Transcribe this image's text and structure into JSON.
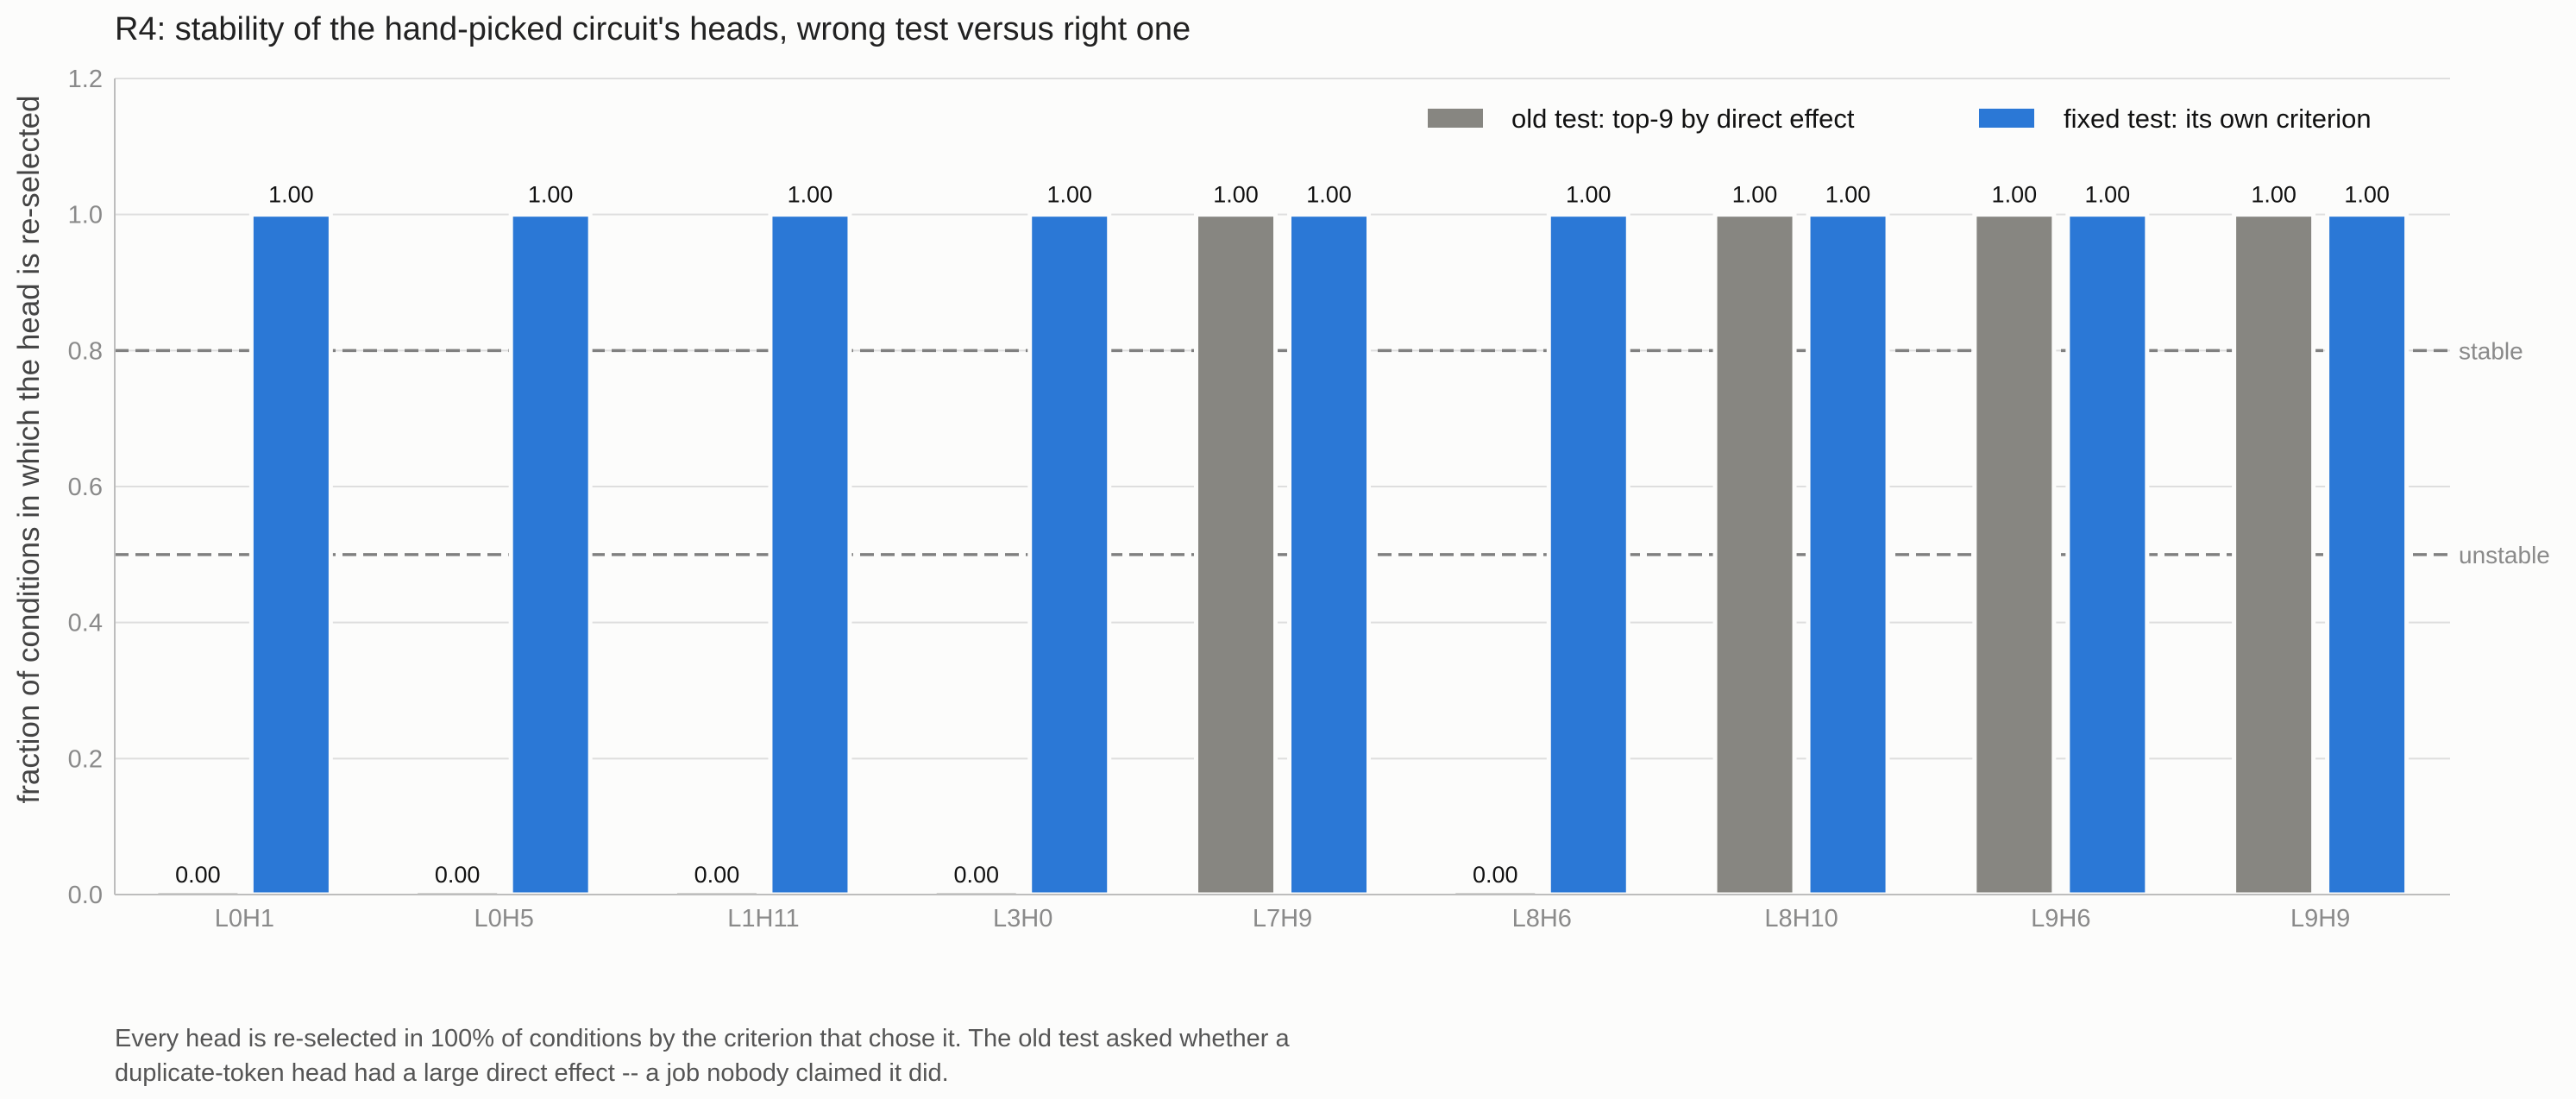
{
  "chart_data": {
    "type": "bar",
    "title": "R4: stability of the hand-picked circuit's heads, wrong test versus right one",
    "xlabel": "",
    "ylabel": "fraction of conditions in which the head is re-selected",
    "ylim": [
      0,
      1.2
    ],
    "yticks": [
      "0.0",
      "0.2",
      "0.4",
      "0.6",
      "0.8",
      "1.0",
      "1.2"
    ],
    "grid": true,
    "legend_position": "top-right",
    "categories": [
      "L0H1",
      "L0H5",
      "L1H11",
      "L3H0",
      "L7H9",
      "L8H6",
      "L8H10",
      "L9H6",
      "L9H9"
    ],
    "series": [
      {
        "name": "old test: top-9 by direct effect",
        "color": "#878681",
        "values": [
          0.0,
          0.0,
          0.0,
          0.0,
          1.0,
          0.0,
          1.0,
          1.0,
          1.0
        ],
        "labels": [
          "0.00",
          "0.00",
          "0.00",
          "0.00",
          "1.00",
          "0.00",
          "1.00",
          "1.00",
          "1.00"
        ]
      },
      {
        "name": "fixed test: its own criterion",
        "color": "#2b78d6",
        "values": [
          1.0,
          1.0,
          1.0,
          1.0,
          1.0,
          1.0,
          1.0,
          1.0,
          1.0
        ],
        "labels": [
          "1.00",
          "1.00",
          "1.00",
          "1.00",
          "1.00",
          "1.00",
          "1.00",
          "1.00",
          "1.00"
        ]
      }
    ],
    "reference_lines": [
      {
        "label": "stable",
        "value": 0.8,
        "color": "#808080"
      },
      {
        "label": "unstable",
        "value": 0.5,
        "color": "#808080"
      }
    ]
  },
  "caption": {
    "line1": "Every head is re-selected in 100% of conditions by the criterion that chose it. The old test asked whether a",
    "line2": "duplicate-token head had a large direct effect -- a job nobody claimed it did."
  }
}
